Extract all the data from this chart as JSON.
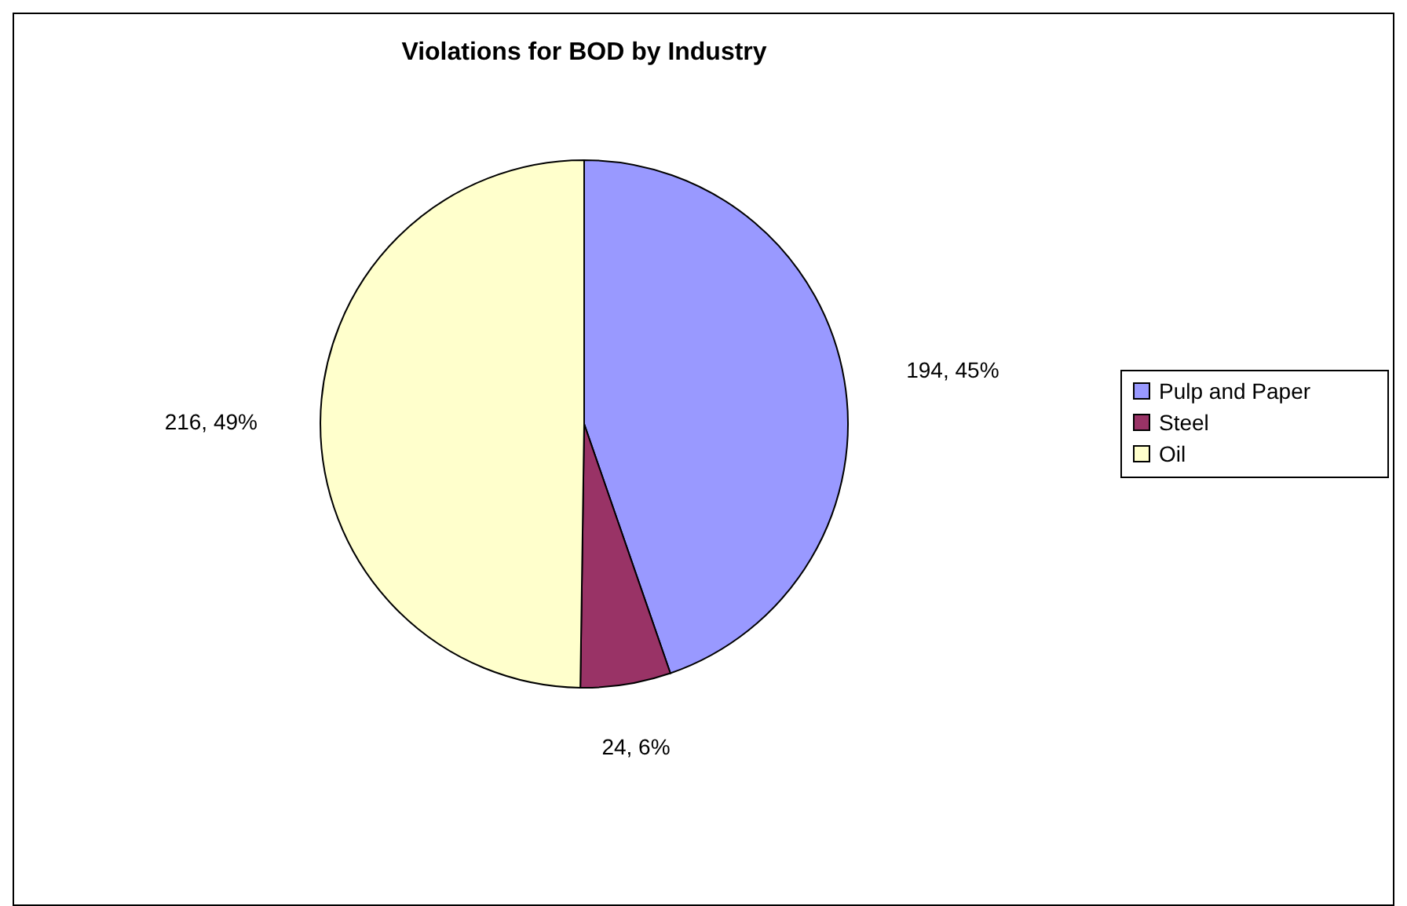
{
  "chart_data": {
    "type": "pie",
    "title": "Violations for BOD by Industry",
    "categories": [
      "Pulp and Paper",
      "Steel",
      "Oil"
    ],
    "values": [
      194,
      24,
      216
    ],
    "colors": [
      "#9999ff",
      "#993366",
      "#ffffcc"
    ],
    "value_labels": [
      "194, 45%",
      "24, 6%",
      "216, 49%"
    ],
    "legend": "right"
  }
}
